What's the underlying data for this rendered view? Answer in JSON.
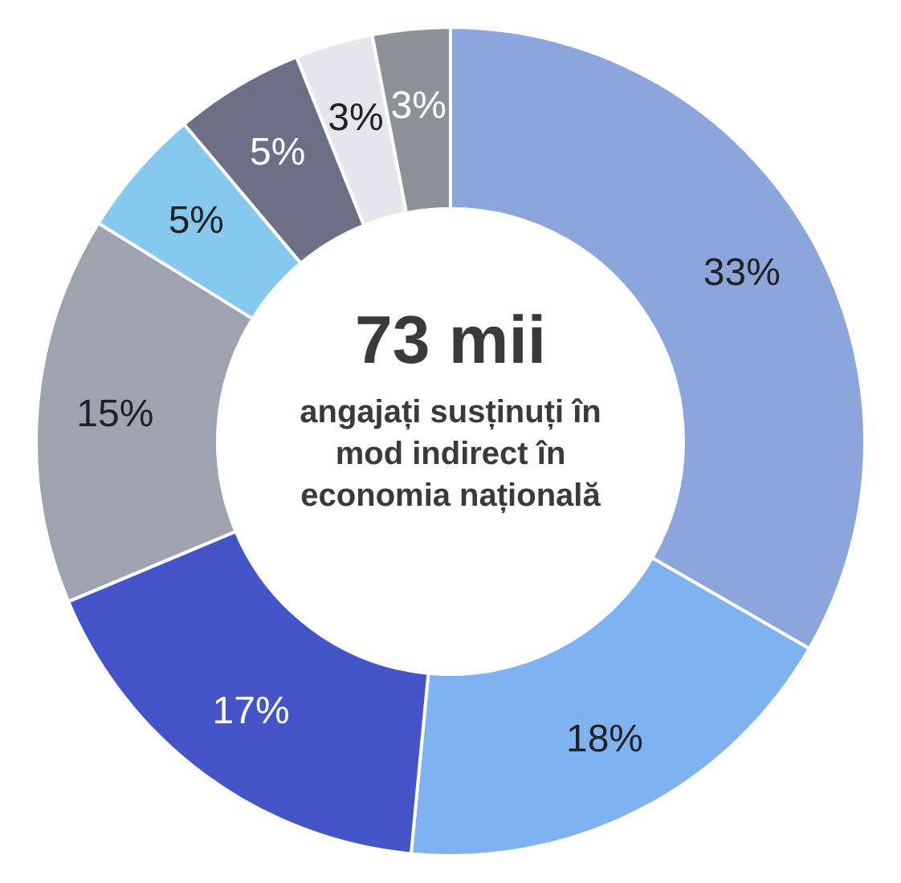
{
  "chart_data": {
    "type": "donut",
    "categories": [
      null,
      null,
      null,
      null,
      null,
      null,
      null,
      null
    ],
    "values": [
      33,
      18,
      17,
      15,
      5,
      5,
      3,
      3
    ],
    "value_labels": [
      "33%",
      "18%",
      "17%",
      "15%",
      "5%",
      "5%",
      "3%",
      "3%"
    ],
    "colors": [
      "#8aa6dc",
      "#7fb2f0",
      "#4355c8",
      "#9ea3b0",
      "#87c8ee",
      "#6b7086",
      "#e6e6ec",
      "#8e9298"
    ],
    "title": "73 mii",
    "subtitle": "angajați susținuți în\nmod indirect în\neconomia națională"
  }
}
